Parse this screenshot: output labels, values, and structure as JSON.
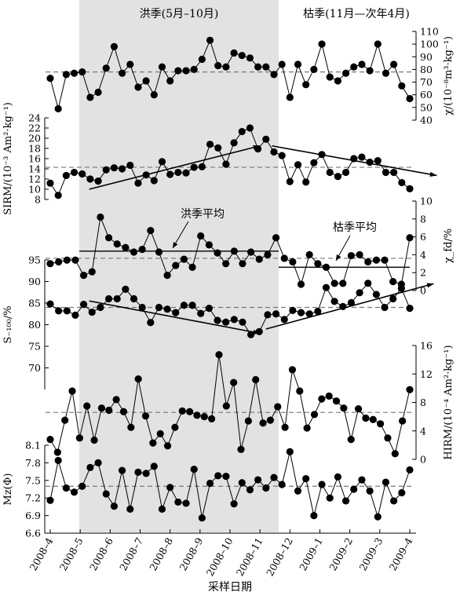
{
  "labels": {
    "flood_season": "洪季(5月–10月)",
    "dry_season": "枯季(11月—次年4月)",
    "flood_mean": "洪季平均",
    "dry_mean": "枯季平均",
    "xlabel": "采样日期"
  },
  "x_ticks": [
    "2008–4",
    "2008–5",
    "2008–6",
    "2008–7",
    "2008–8",
    "2008–9",
    "2008–10",
    "2008–11",
    "2008–12",
    "2009–1",
    "2009–2",
    "2009–3",
    "2009–4"
  ],
  "chart_data": [
    {
      "type": "line",
      "ylabel": "χ/(10⁻⁸m³·kg⁻¹)",
      "y_axis_side": "right",
      "ylim": [
        40,
        110
      ],
      "yticks": [
        40,
        50,
        60,
        70,
        80,
        90,
        100,
        110
      ],
      "mean_line": 78,
      "values": [
        73,
        49,
        76,
        77,
        78,
        58,
        62,
        81,
        98,
        77,
        84,
        66,
        71,
        60,
        82,
        71,
        79,
        79,
        80,
        88,
        103,
        83,
        82,
        93,
        91,
        89,
        82,
        82,
        76,
        84,
        58,
        84,
        68,
        80,
        100,
        74,
        71,
        77,
        82,
        84,
        79,
        100,
        77,
        84,
        67,
        57
      ]
    },
    {
      "type": "line",
      "ylabel": "SIRM/(10⁻³ Am²·kg⁻¹)",
      "y_axis_side": "left",
      "ylim": [
        8,
        24
      ],
      "yticks": [
        8,
        10,
        12,
        14,
        16,
        18,
        20,
        22,
        24
      ],
      "mean_line": 14.3,
      "trend_arrows": [
        [
          [
            1.3,
            10
          ],
          [
            7.0,
            18.5
          ]
        ],
        [
          [
            7.4,
            18.5
          ],
          [
            12.9,
            12.7
          ]
        ]
      ],
      "values": [
        11.2,
        8.8,
        12.7,
        13.3,
        13.0,
        12.0,
        11.6,
        13.8,
        14.2,
        14.0,
        14.7,
        11.2,
        12.8,
        11.7,
        15.4,
        12.9,
        13.3,
        13.2,
        14.3,
        14.4,
        18.8,
        18.1,
        14.9,
        19.1,
        21.3,
        22.0,
        17.9,
        19.8,
        17.3,
        16.6,
        11.5,
        14.8,
        11.4,
        15.2,
        16.8,
        13.3,
        12.5,
        13.3,
        16.0,
        16.3,
        15.3,
        15.6,
        13.3,
        13.3,
        11.3,
        10.1
      ]
    },
    {
      "type": "line",
      "ylabel": "χ_fd/%",
      "y_axis_side": "right",
      "ylim": [
        0,
        10
      ],
      "yticks": [
        0,
        2,
        4,
        6,
        8,
        10
      ],
      "mean_line": 3.6,
      "flood_mean": 4.4,
      "dry_mean": 2.6,
      "values": [
        3.0,
        3.2,
        3.4,
        3.4,
        1.7,
        2.1,
        8.2,
        5.9,
        5.2,
        4.8,
        4.3,
        4.6,
        6.7,
        4.3,
        1.7,
        2.8,
        3.5,
        2.6,
        6.1,
        5.1,
        4.2,
        3.0,
        4.4,
        3.0,
        4.3,
        3.5,
        4.0,
        5.9,
        3.6,
        3.2,
        0.7,
        4.0,
        3.0,
        2.6,
        0.8,
        0.8,
        3.9,
        4.0,
        3.2,
        3.4,
        3.4,
        1.0,
        0.7,
        5.9
      ]
    },
    {
      "type": "line",
      "ylabel": "S₋₁₀₀/%",
      "y_axis_side": "left",
      "ylim": [
        65,
        95
      ],
      "yticks": [
        70,
        75,
        80,
        85,
        90,
        95
      ],
      "mean_line": 84,
      "trend_arrows": [
        [
          [
            1.3,
            85.5
          ],
          [
            7.0,
            78
          ]
        ],
        [
          [
            7.2,
            79
          ],
          [
            12.8,
            89.5
          ]
        ]
      ],
      "values": [
        84.8,
        83.2,
        83.2,
        82.2,
        84.7,
        82.9,
        84.0,
        86.0,
        86.0,
        88.2,
        86.0,
        84.0,
        80.5,
        84.0,
        83.6,
        82.8,
        84.5,
        84.5,
        82.6,
        83.8,
        81.0,
        80.6,
        81.2,
        80.6,
        77.7,
        78.4,
        82.3,
        82.5,
        81.2,
        83.3,
        82.8,
        82.5,
        83.1,
        88.6,
        85.4,
        84.2,
        85.1,
        87.4,
        89.6,
        87.0,
        84.0,
        86.0,
        88.4,
        83.8
      ]
    },
    {
      "type": "line",
      "ylabel": "HIRM/(10⁻⁴ Am²·kg⁻¹)",
      "y_axis_side": "right",
      "ylim": [
        0,
        16
      ],
      "yticks": [
        0,
        4,
        8,
        12,
        16
      ],
      "mean_line": 6.6,
      "values": [
        2.8,
        1.0,
        5.5,
        9.6,
        3.0,
        7.5,
        2.7,
        7.2,
        6.9,
        8.4,
        6.7,
        4.5,
        11.3,
        6.1,
        2.3,
        3.6,
        1.9,
        4.5,
        6.8,
        6.7,
        6.2,
        6.0,
        5.7,
        14.7,
        7.5,
        10.8,
        1.4,
        5.4,
        11.2,
        5.1,
        5.5,
        7.4,
        4.5,
        12.6,
        9.6,
        4.4,
        6.3,
        8.5,
        8.9,
        8.2,
        7.2,
        2.8,
        7.1,
        5.8,
        5.6,
        5.0,
        3.0,
        0.8,
        5.4,
        9.8
      ]
    },
    {
      "type": "line",
      "ylabel": "Mz(Φ)",
      "y_axis_side": "left",
      "ylim": [
        6.6,
        8.1
      ],
      "yticks": [
        6.6,
        6.9,
        7.2,
        7.5,
        7.8,
        8.1
      ],
      "mean_line": 7.4,
      "values": [
        7.16,
        7.84,
        7.37,
        7.3,
        7.4,
        7.72,
        7.8,
        7.27,
        7.06,
        7.67,
        7.01,
        7.64,
        7.62,
        7.74,
        7.01,
        7.38,
        7.13,
        7.11,
        7.69,
        6.86,
        7.45,
        7.58,
        7.57,
        7.1,
        7.46,
        7.34,
        7.51,
        7.37,
        7.55,
        7.43,
        7.99,
        7.32,
        7.53,
        6.9,
        7.43,
        7.2,
        7.56,
        7.15,
        7.35,
        7.51,
        7.32,
        6.88,
        7.47,
        7.15,
        7.29,
        7.68
      ]
    }
  ]
}
